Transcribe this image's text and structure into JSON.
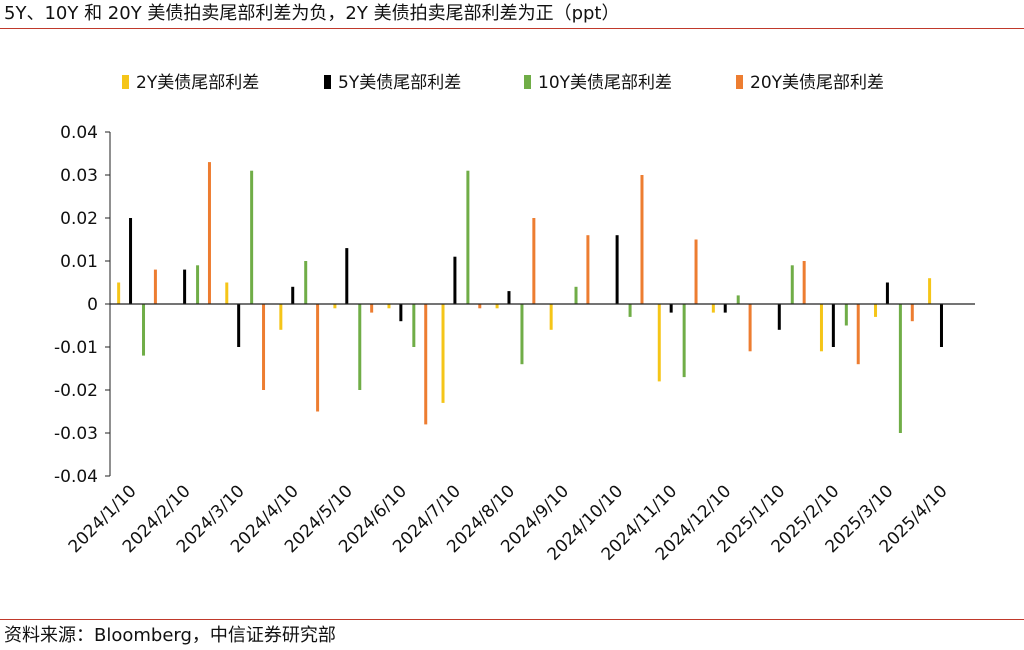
{
  "title": "5Y、10Y 和 20Y 美债拍卖尾部利差为负，2Y 美债拍卖尾部利差为正（ppt）",
  "source": "资料来源：Bloomberg，中信证券研究部",
  "chart_data": {
    "type": "bar",
    "categories": [
      "2024/1/10",
      "2024/2/10",
      "2024/3/10",
      "2024/4/10",
      "2024/5/10",
      "2024/6/10",
      "2024/7/10",
      "2024/8/10",
      "2024/9/10",
      "2024/10/10",
      "2024/11/10",
      "2024/12/10",
      "2025/1/10",
      "2025/2/10",
      "2025/3/10",
      "2025/4/10"
    ],
    "y_ticks": [
      "0.04",
      "0.03",
      "0.02",
      "0.01",
      "0",
      "-0.01",
      "-0.02",
      "-0.03",
      "-0.04"
    ],
    "ylim": [
      -0.04,
      0.04
    ],
    "legend_position": "top",
    "grid": false,
    "series": [
      {
        "name": "2Y美债尾部利差",
        "color": "#f5c518",
        "points": [
          {
            "x": "2024/1/10",
            "y": 0.005
          },
          {
            "x": "2024/3/10",
            "y": 0.005
          },
          {
            "x": "2024/4/10",
            "y": -0.006
          },
          {
            "x": "2024/5/10",
            "y": -0.001
          },
          {
            "x": "2024/6/10",
            "y": -0.001
          },
          {
            "x": "2024/7/10",
            "y": -0.023
          },
          {
            "x": "2024/8/10",
            "y": -0.001
          },
          {
            "x": "2024/9/10",
            "y": -0.006
          },
          {
            "x": "2024/11/10",
            "y": -0.018
          },
          {
            "x": "2024/12/10",
            "y": -0.002
          },
          {
            "x": "2025/2/10",
            "y": -0.011
          },
          {
            "x": "2025/3/10",
            "y": -0.003
          },
          {
            "x": "2025/4/10",
            "y": 0.006
          }
        ]
      },
      {
        "name": "5Y美债尾部利差",
        "color": "#000000",
        "points": [
          {
            "x": "2024/1/10",
            "y": 0.02
          },
          {
            "x": "2024/2/10",
            "y": 0.008
          },
          {
            "x": "2024/3/10",
            "y": -0.01
          },
          {
            "x": "2024/4/10",
            "y": 0.004
          },
          {
            "x": "2024/5/10",
            "y": 0.013
          },
          {
            "x": "2024/6/10",
            "y": -0.004
          },
          {
            "x": "2024/7/10",
            "y": 0.011
          },
          {
            "x": "2024/8/10",
            "y": 0.003
          },
          {
            "x": "2024/10/10",
            "y": 0.016
          },
          {
            "x": "2024/11/10",
            "y": -0.002
          },
          {
            "x": "2024/12/10",
            "y": -0.002
          },
          {
            "x": "2025/1/10",
            "y": -0.006
          },
          {
            "x": "2025/2/10",
            "y": -0.01
          },
          {
            "x": "2025/3/10",
            "y": 0.005
          },
          {
            "x": "2025/4/10",
            "y": -0.01
          }
        ]
      },
      {
        "name": "10Y美债尾部利差",
        "color": "#70ad47",
        "points": [
          {
            "x": "2024/1/10",
            "y": -0.012
          },
          {
            "x": "2024/2/10",
            "y": 0.009
          },
          {
            "x": "2024/3/10",
            "y": 0.031
          },
          {
            "x": "2024/4/10",
            "y": 0.01
          },
          {
            "x": "2024/5/10",
            "y": -0.02
          },
          {
            "x": "2024/6/10",
            "y": -0.01
          },
          {
            "x": "2024/7/10",
            "y": 0.031
          },
          {
            "x": "2024/8/10",
            "y": -0.014
          },
          {
            "x": "2024/9/10",
            "y": 0.004
          },
          {
            "x": "2024/10/10",
            "y": -0.003
          },
          {
            "x": "2024/11/10",
            "y": -0.017
          },
          {
            "x": "2024/12/10",
            "y": 0.002
          },
          {
            "x": "2025/1/10",
            "y": 0.009
          },
          {
            "x": "2025/2/10",
            "y": -0.005
          },
          {
            "x": "2025/3/10",
            "y": -0.03
          }
        ]
      },
      {
        "name": "20Y美债尾部利差",
        "color": "#ed7d31",
        "points": [
          {
            "x": "2024/1/10",
            "y": 0.008
          },
          {
            "x": "2024/2/10",
            "y": 0.033
          },
          {
            "x": "2024/3/10",
            "y": -0.02
          },
          {
            "x": "2024/4/10",
            "y": -0.025
          },
          {
            "x": "2024/5/10",
            "y": -0.002
          },
          {
            "x": "2024/6/10",
            "y": -0.028
          },
          {
            "x": "2024/7/10",
            "y": -0.001
          },
          {
            "x": "2024/8/10",
            "y": 0.02
          },
          {
            "x": "2024/9/10",
            "y": 0.016
          },
          {
            "x": "2024/10/10",
            "y": 0.03
          },
          {
            "x": "2024/11/10",
            "y": 0.015
          },
          {
            "x": "2024/12/10",
            "y": -0.011
          },
          {
            "x": "2025/1/10",
            "y": 0.01
          },
          {
            "x": "2025/2/10",
            "y": -0.014
          },
          {
            "x": "2025/3/10",
            "y": -0.004
          }
        ]
      }
    ]
  }
}
